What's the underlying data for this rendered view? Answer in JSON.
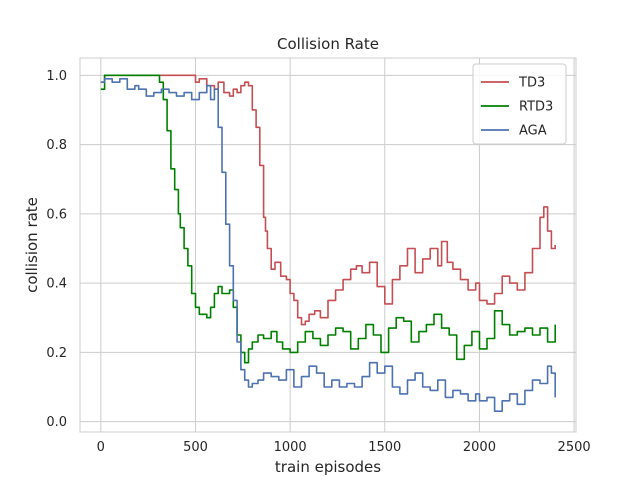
{
  "chart_data": {
    "type": "line",
    "title": "Collision Rate",
    "xlabel": "train episodes",
    "ylabel": "collision rate",
    "xlim": [
      -110,
      2510
    ],
    "ylim": [
      -0.03,
      1.05
    ],
    "xticks": [
      0,
      500,
      1000,
      1500,
      2000,
      2500
    ],
    "xtick_labels": [
      "0",
      "500",
      "1000",
      "1500",
      "2000",
      "2500"
    ],
    "yticks": [
      0.0,
      0.2,
      0.4,
      0.6,
      0.8,
      1.0
    ],
    "ytick_labels": [
      "0.0",
      "0.2",
      "0.4",
      "0.6",
      "0.8",
      "1.0"
    ],
    "grid": true,
    "legend_position": "top-right",
    "series": [
      {
        "name": "TD3",
        "color": "#c44e52",
        "x": [
          0,
          20,
          100,
          200,
          300,
          400,
          480,
          500,
          520,
          560,
          600,
          620,
          650,
          680,
          700,
          720,
          740,
          760,
          780,
          800,
          820,
          840,
          860,
          870,
          880,
          900,
          920,
          950,
          980,
          1000,
          1020,
          1040,
          1060,
          1080,
          1100,
          1130,
          1160,
          1200,
          1240,
          1280,
          1320,
          1350,
          1380,
          1420,
          1460,
          1500,
          1540,
          1580,
          1620,
          1660,
          1700,
          1740,
          1780,
          1800,
          1830,
          1860,
          1900,
          1940,
          1980,
          2000,
          2040,
          2080,
          2120,
          2160,
          2200,
          2240,
          2280,
          2320,
          2340,
          2360,
          2380,
          2400
        ],
        "y": [
          0.98,
          1.0,
          1.0,
          1.0,
          1.0,
          1.0,
          1.0,
          0.98,
          0.99,
          0.97,
          0.96,
          0.98,
          0.95,
          0.94,
          0.96,
          0.95,
          0.97,
          0.98,
          0.97,
          0.9,
          0.85,
          0.74,
          0.59,
          0.55,
          0.5,
          0.44,
          0.46,
          0.42,
          0.41,
          0.37,
          0.35,
          0.3,
          0.28,
          0.29,
          0.31,
          0.32,
          0.3,
          0.35,
          0.38,
          0.41,
          0.44,
          0.45,
          0.43,
          0.46,
          0.39,
          0.34,
          0.41,
          0.45,
          0.5,
          0.43,
          0.47,
          0.5,
          0.45,
          0.52,
          0.46,
          0.44,
          0.41,
          0.38,
          0.4,
          0.35,
          0.34,
          0.37,
          0.42,
          0.4,
          0.38,
          0.43,
          0.5,
          0.59,
          0.62,
          0.55,
          0.5,
          0.51
        ]
      },
      {
        "name": "RTD3",
        "color": "#008000",
        "x": [
          0,
          20,
          60,
          100,
          150,
          200,
          250,
          300,
          310,
          330,
          350,
          370,
          390,
          410,
          420,
          440,
          460,
          480,
          500,
          520,
          540,
          560,
          580,
          600,
          620,
          640,
          660,
          680,
          700,
          720,
          740,
          760,
          780,
          800,
          830,
          860,
          900,
          930,
          960,
          1000,
          1040,
          1080,
          1120,
          1160,
          1200,
          1240,
          1280,
          1320,
          1360,
          1400,
          1440,
          1480,
          1520,
          1560,
          1600,
          1640,
          1680,
          1720,
          1760,
          1800,
          1840,
          1880,
          1920,
          1960,
          2000,
          2040,
          2080,
          2120,
          2160,
          2200,
          2240,
          2280,
          2320,
          2360,
          2400
        ],
        "y": [
          0.96,
          1.0,
          1.0,
          1.0,
          1.0,
          1.0,
          1.0,
          1.0,
          0.98,
          0.93,
          0.84,
          0.73,
          0.67,
          0.6,
          0.56,
          0.5,
          0.45,
          0.37,
          0.33,
          0.31,
          0.31,
          0.3,
          0.33,
          0.37,
          0.39,
          0.37,
          0.37,
          0.38,
          0.33,
          0.25,
          0.2,
          0.17,
          0.21,
          0.23,
          0.25,
          0.24,
          0.26,
          0.23,
          0.21,
          0.2,
          0.23,
          0.26,
          0.24,
          0.22,
          0.25,
          0.27,
          0.26,
          0.21,
          0.24,
          0.28,
          0.25,
          0.2,
          0.27,
          0.3,
          0.29,
          0.23,
          0.26,
          0.28,
          0.31,
          0.27,
          0.25,
          0.18,
          0.22,
          0.26,
          0.21,
          0.24,
          0.32,
          0.28,
          0.25,
          0.26,
          0.27,
          0.25,
          0.27,
          0.23,
          0.28
        ]
      },
      {
        "name": "AGA",
        "color": "#4c72b0",
        "x": [
          0,
          20,
          60,
          100,
          140,
          180,
          200,
          240,
          280,
          320,
          360,
          400,
          440,
          480,
          520,
          560,
          580,
          600,
          620,
          640,
          660,
          680,
          700,
          720,
          740,
          760,
          780,
          800,
          830,
          860,
          900,
          940,
          980,
          1020,
          1060,
          1100,
          1140,
          1180,
          1220,
          1260,
          1300,
          1340,
          1380,
          1420,
          1460,
          1500,
          1540,
          1580,
          1620,
          1660,
          1700,
          1740,
          1780,
          1820,
          1860,
          1900,
          1940,
          1980,
          2000,
          2040,
          2080,
          2120,
          2160,
          2200,
          2240,
          2280,
          2320,
          2360,
          2380,
          2400
        ],
        "y": [
          0.98,
          0.99,
          0.98,
          0.99,
          0.96,
          0.97,
          0.96,
          0.94,
          0.95,
          0.96,
          0.95,
          0.94,
          0.95,
          0.93,
          0.95,
          0.97,
          0.93,
          0.96,
          0.85,
          0.72,
          0.57,
          0.45,
          0.35,
          0.23,
          0.15,
          0.12,
          0.1,
          0.11,
          0.12,
          0.14,
          0.13,
          0.12,
          0.15,
          0.1,
          0.13,
          0.16,
          0.14,
          0.1,
          0.12,
          0.1,
          0.11,
          0.1,
          0.13,
          0.17,
          0.14,
          0.16,
          0.1,
          0.08,
          0.12,
          0.14,
          0.1,
          0.09,
          0.12,
          0.07,
          0.09,
          0.08,
          0.06,
          0.08,
          0.06,
          0.07,
          0.03,
          0.06,
          0.08,
          0.05,
          0.09,
          0.12,
          0.11,
          0.16,
          0.14,
          0.07
        ]
      }
    ]
  }
}
